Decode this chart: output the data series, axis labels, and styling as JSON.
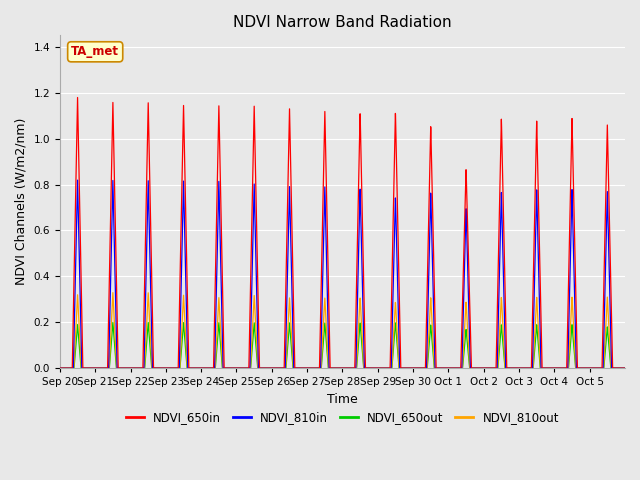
{
  "title": "NDVI Narrow Band Radiation",
  "ylabel": "NDVI Channels (W/m2/nm)",
  "xlabel": "Time",
  "annotation": "TA_met",
  "ylim": [
    0,
    1.45
  ],
  "plot_bg_color": "#e8e8e8",
  "fig_bg_color": "#e8e8e8",
  "lines": {
    "NDVI_650in": {
      "color": "#ff0000",
      "label": "NDVI_650in"
    },
    "NDVI_810in": {
      "color": "#0000ff",
      "label": "NDVI_810in"
    },
    "NDVI_650out": {
      "color": "#00cc00",
      "label": "NDVI_650out"
    },
    "NDVI_810out": {
      "color": "#ffa500",
      "label": "NDVI_810out"
    }
  },
  "peak_650in": [
    1.18,
    1.16,
    1.16,
    1.15,
    1.15,
    1.15,
    1.14,
    1.13,
    1.12,
    1.12,
    1.06,
    0.87,
    1.09,
    1.08,
    1.09,
    1.06
  ],
  "peak_810in": [
    0.82,
    0.82,
    0.82,
    0.82,
    0.82,
    0.81,
    0.8,
    0.8,
    0.79,
    0.75,
    0.77,
    0.7,
    0.77,
    0.78,
    0.78,
    0.77
  ],
  "peak_650out": [
    0.19,
    0.2,
    0.2,
    0.2,
    0.2,
    0.2,
    0.2,
    0.2,
    0.2,
    0.2,
    0.19,
    0.17,
    0.19,
    0.19,
    0.19,
    0.18
  ],
  "peak_810out": [
    0.32,
    0.33,
    0.33,
    0.32,
    0.31,
    0.32,
    0.31,
    0.31,
    0.31,
    0.29,
    0.31,
    0.29,
    0.31,
    0.31,
    0.31,
    0.31
  ],
  "num_days": 16,
  "ticks": [
    "Sep 20",
    "Sep 21",
    "Sep 22",
    "Sep 23",
    "Sep 24",
    "Sep 25",
    "Sep 26",
    "Sep 27",
    "Sep 28",
    "Sep 29",
    "Sep 30",
    "Oct 1",
    "Oct 2",
    "Oct 3",
    "Oct 4",
    "Oct 5"
  ],
  "grid_color": "#ffffff",
  "title_fontsize": 11,
  "axis_fontsize": 9,
  "tick_fontsize": 7.5
}
